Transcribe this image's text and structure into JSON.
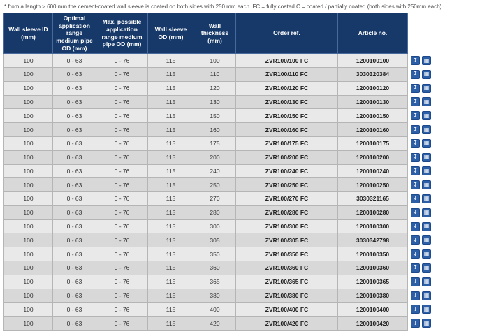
{
  "note": "* from a length > 600 mm the cement-coated wall sleeve is coated on both sides with 250 mm each. FC = fully coated C = coated / partially coated (both sides with 250mm each)",
  "colors": {
    "header_bg": "#17396a",
    "row_light": "#e9e9e9",
    "row_dark": "#d8d8d8",
    "accent_blue": "#2d5fa6"
  },
  "table": {
    "headers": [
      "Wall sleeve ID (mm)",
      "Optimal application range medium pipe OD (mm)",
      "Max. possible application range medium pipe OD (mm)",
      "Wall sleeve OD (mm)",
      "Wall thickness (mm)",
      "Order ref.",
      "Article no."
    ],
    "icons": {
      "download": "↧",
      "datasheet": "▦"
    },
    "rows": [
      {
        "id": "100",
        "optimal": "0 - 63",
        "max": "0 - 76",
        "od": "115",
        "thickness": "100",
        "order_ref": "ZVR100/100 FC",
        "article_no": "1200100100"
      },
      {
        "id": "100",
        "optimal": "0 - 63",
        "max": "0 - 76",
        "od": "115",
        "thickness": "110",
        "order_ref": "ZVR100/110 FC",
        "article_no": "3030320384"
      },
      {
        "id": "100",
        "optimal": "0 - 63",
        "max": "0 - 76",
        "od": "115",
        "thickness": "120",
        "order_ref": "ZVR100/120 FC",
        "article_no": "1200100120"
      },
      {
        "id": "100",
        "optimal": "0 - 63",
        "max": "0 - 76",
        "od": "115",
        "thickness": "130",
        "order_ref": "ZVR100/130 FC",
        "article_no": "1200100130"
      },
      {
        "id": "100",
        "optimal": "0 - 63",
        "max": "0 - 76",
        "od": "115",
        "thickness": "150",
        "order_ref": "ZVR100/150 FC",
        "article_no": "1200100150"
      },
      {
        "id": "100",
        "optimal": "0 - 63",
        "max": "0 - 76",
        "od": "115",
        "thickness": "160",
        "order_ref": "ZVR100/160 FC",
        "article_no": "1200100160"
      },
      {
        "id": "100",
        "optimal": "0 - 63",
        "max": "0 - 76",
        "od": "115",
        "thickness": "175",
        "order_ref": "ZVR100/175 FC",
        "article_no": "1200100175"
      },
      {
        "id": "100",
        "optimal": "0 - 63",
        "max": "0 - 76",
        "od": "115",
        "thickness": "200",
        "order_ref": "ZVR100/200 FC",
        "article_no": "1200100200"
      },
      {
        "id": "100",
        "optimal": "0 - 63",
        "max": "0 - 76",
        "od": "115",
        "thickness": "240",
        "order_ref": "ZVR100/240 FC",
        "article_no": "1200100240"
      },
      {
        "id": "100",
        "optimal": "0 - 63",
        "max": "0 - 76",
        "od": "115",
        "thickness": "250",
        "order_ref": "ZVR100/250 FC",
        "article_no": "1200100250"
      },
      {
        "id": "100",
        "optimal": "0 - 63",
        "max": "0 - 76",
        "od": "115",
        "thickness": "270",
        "order_ref": "ZVR100/270 FC",
        "article_no": "3030321165"
      },
      {
        "id": "100",
        "optimal": "0 - 63",
        "max": "0 - 76",
        "od": "115",
        "thickness": "280",
        "order_ref": "ZVR100/280 FC",
        "article_no": "1200100280"
      },
      {
        "id": "100",
        "optimal": "0 - 63",
        "max": "0 - 76",
        "od": "115",
        "thickness": "300",
        "order_ref": "ZVR100/300 FC",
        "article_no": "1200100300"
      },
      {
        "id": "100",
        "optimal": "0 - 63",
        "max": "0 - 76",
        "od": "115",
        "thickness": "305",
        "order_ref": "ZVR100/305 FC",
        "article_no": "3030342798"
      },
      {
        "id": "100",
        "optimal": "0 - 63",
        "max": "0 - 76",
        "od": "115",
        "thickness": "350",
        "order_ref": "ZVR100/350 FC",
        "article_no": "1200100350"
      },
      {
        "id": "100",
        "optimal": "0 - 63",
        "max": "0 - 76",
        "od": "115",
        "thickness": "360",
        "order_ref": "ZVR100/360 FC",
        "article_no": "1200100360"
      },
      {
        "id": "100",
        "optimal": "0 - 63",
        "max": "0 - 76",
        "od": "115",
        "thickness": "365",
        "order_ref": "ZVR100/365 FC",
        "article_no": "1200100365"
      },
      {
        "id": "100",
        "optimal": "0 - 63",
        "max": "0 - 76",
        "od": "115",
        "thickness": "380",
        "order_ref": "ZVR100/380 FC",
        "article_no": "1200100380"
      },
      {
        "id": "100",
        "optimal": "0 - 63",
        "max": "0 - 76",
        "od": "115",
        "thickness": "400",
        "order_ref": "ZVR100/400 FC",
        "article_no": "1200100400"
      },
      {
        "id": "100",
        "optimal": "0 - 63",
        "max": "0 - 76",
        "od": "115",
        "thickness": "420",
        "order_ref": "ZVR100/420 FC",
        "article_no": "1200100420"
      }
    ]
  }
}
